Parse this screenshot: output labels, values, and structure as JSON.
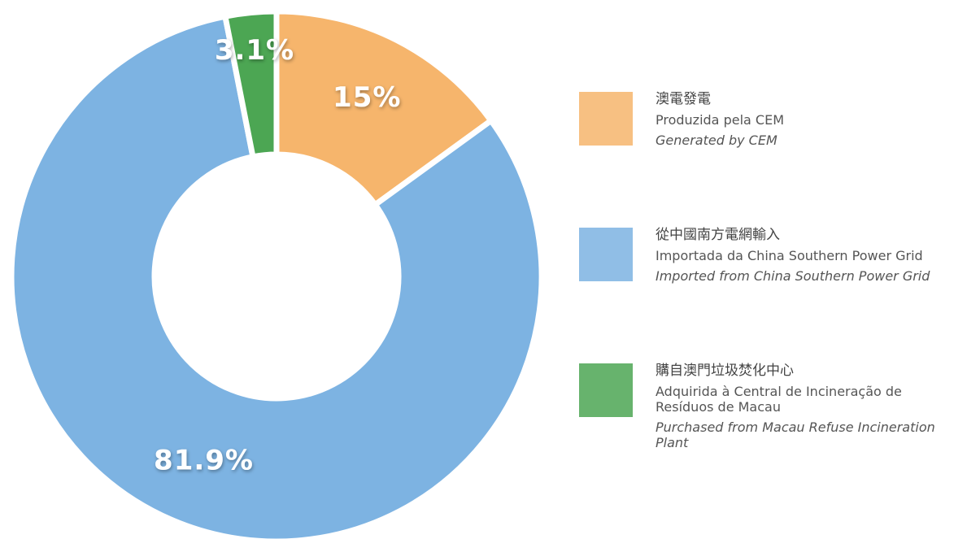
{
  "chart_data": {
    "type": "donut",
    "categories": [
      "澳電發電",
      "從中國南方電網輸入",
      "購自澳門垃圾焚化中心"
    ],
    "categories_pt": [
      "Produzida pela CEM",
      "Importada da China Southern Power Grid",
      "Adquirida à Central de Incineração de Resíduos de Macau"
    ],
    "categories_en": [
      "Generated by CEM",
      "Imported from China Southern Power Grid",
      "Purchased from Macau Refuse Incineration Plant"
    ],
    "values": [
      15,
      81.9,
      3.1
    ],
    "value_labels": [
      "15%",
      "81.9%",
      "3.1%"
    ],
    "colors": [
      "#f6b56c",
      "#7db3e2",
      "#4ca653"
    ]
  }
}
